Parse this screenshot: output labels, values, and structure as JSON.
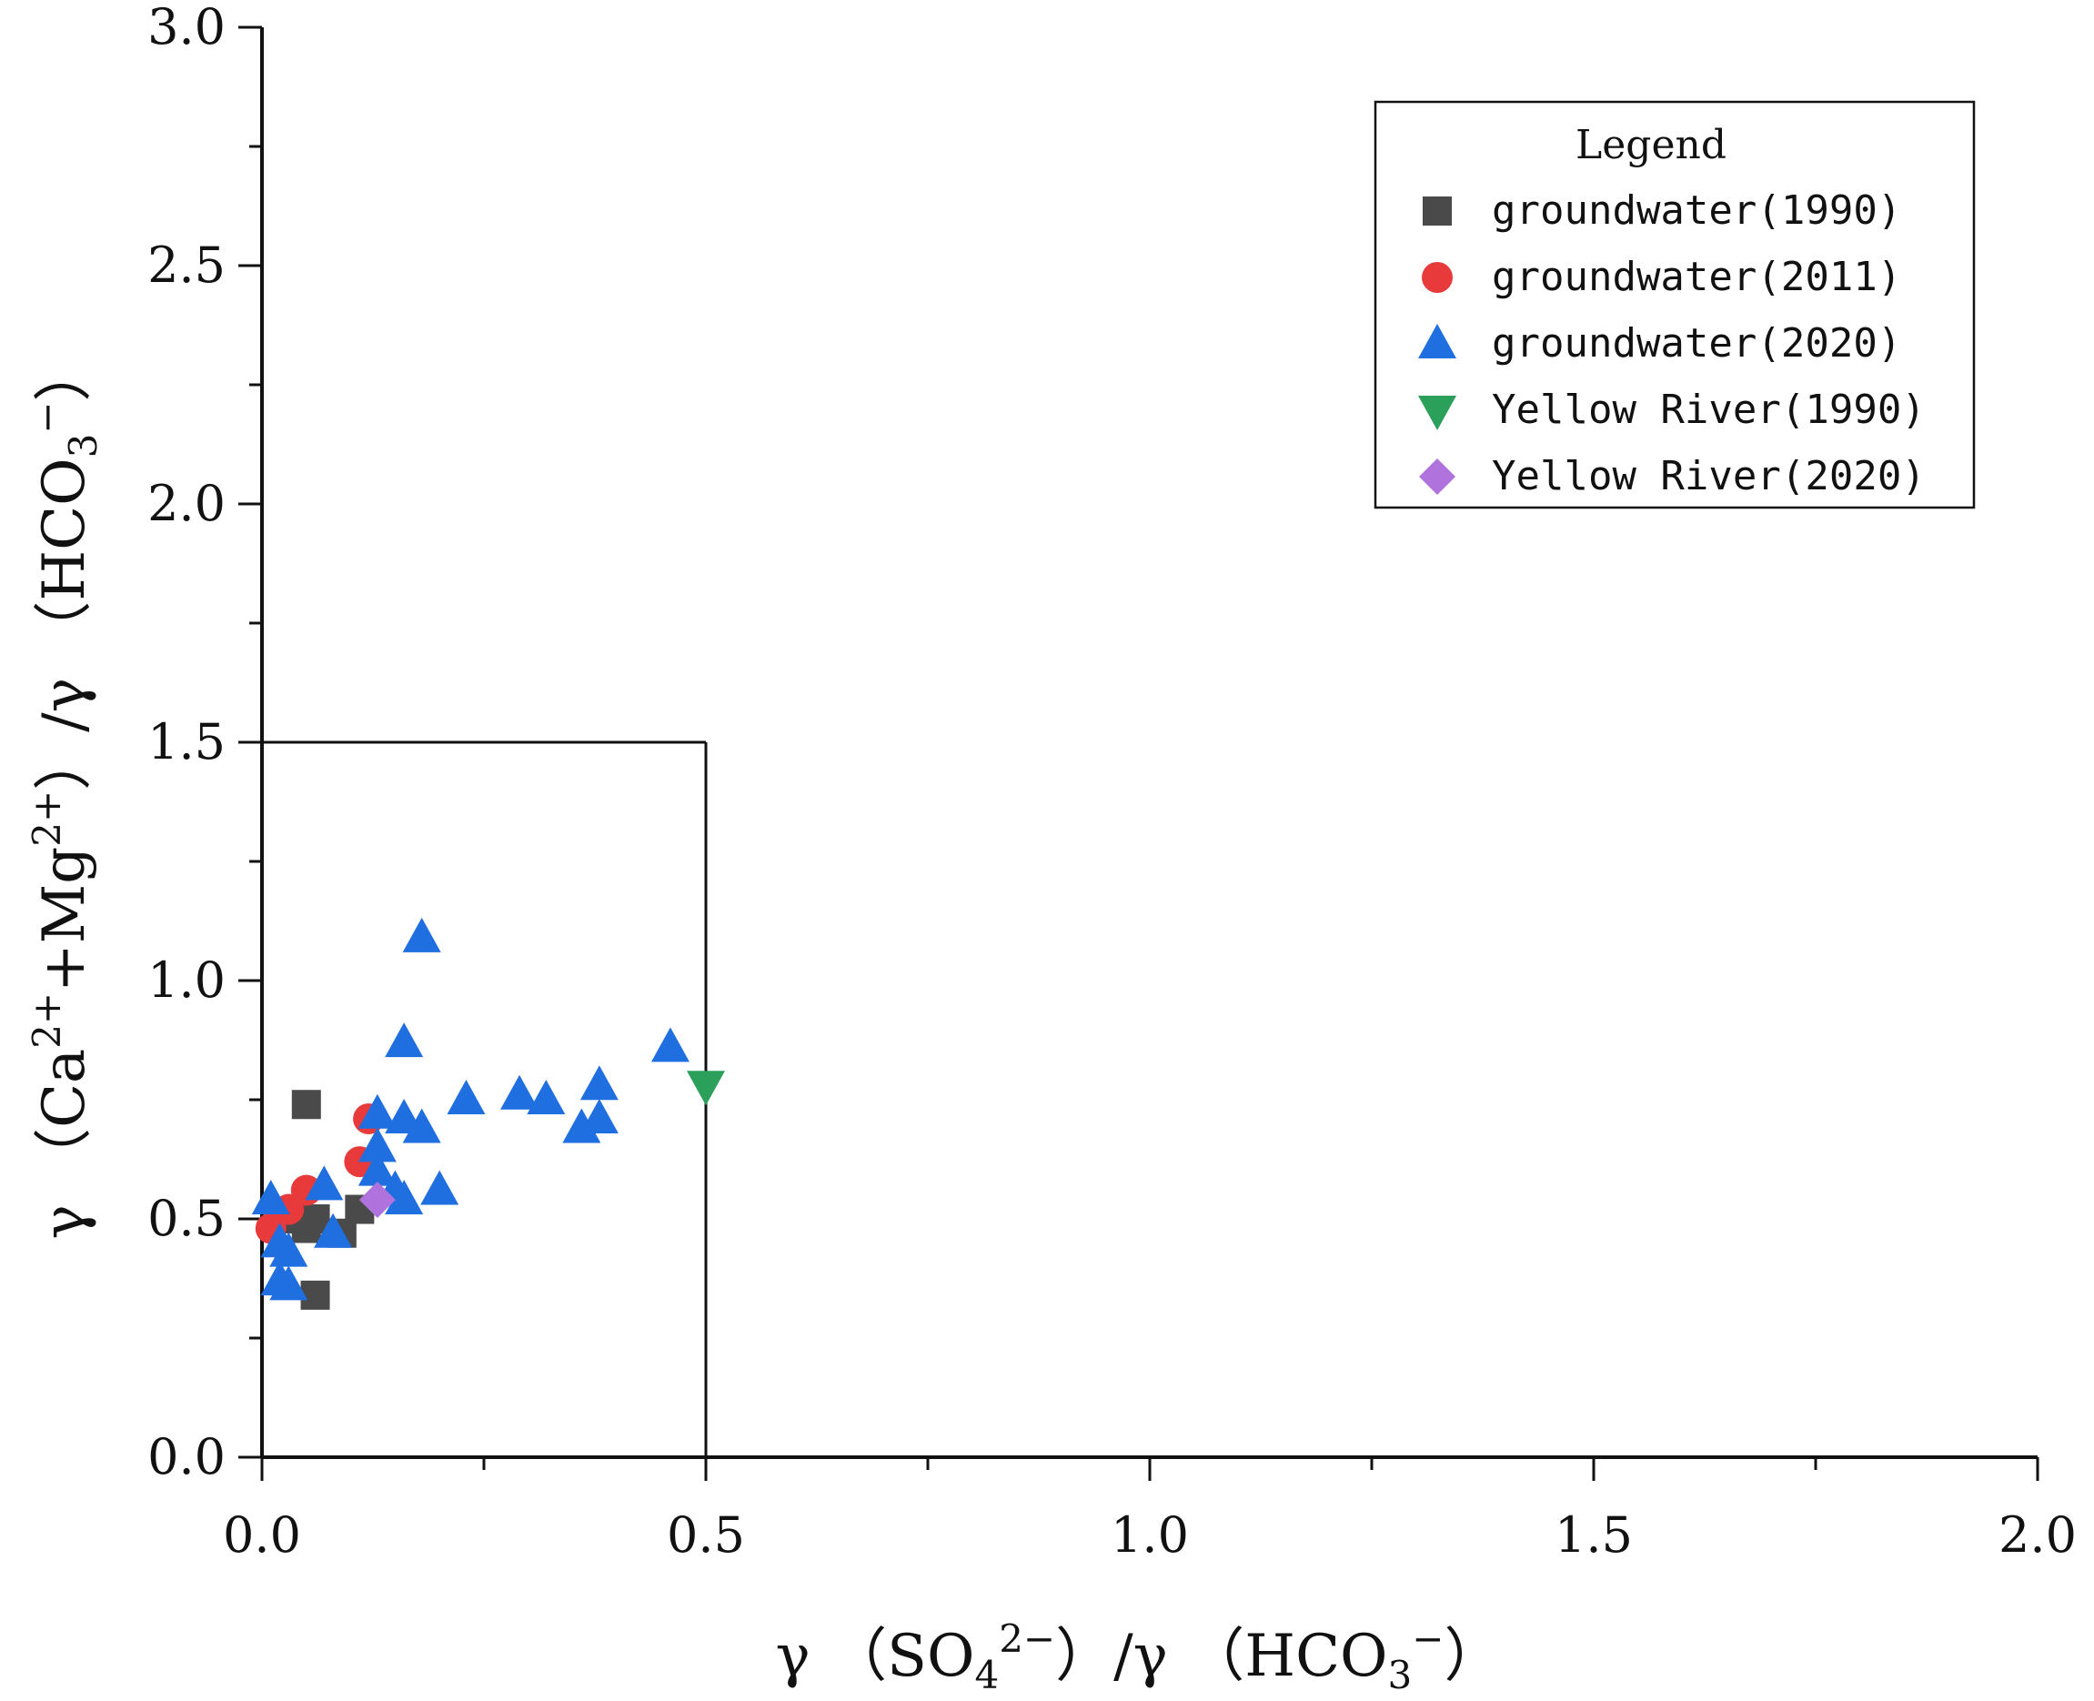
{
  "chart_data": {
    "type": "scatter",
    "title": "",
    "xlabel": {
      "prefix": "γ （SO",
      "sub1": "4",
      "sup1": "2−",
      "middle": "）/γ （HCO",
      "sub2": "3",
      "sup2": "−",
      "suffix": "）"
    },
    "ylabel": {
      "prefix": "γ （Ca",
      "sup1": "2+",
      "middle": "+Mg",
      "sup2": "2+",
      "middle2": "）/γ （HCO",
      "sub": "3",
      "sup3": "−",
      "suffix": "）"
    },
    "xlim": [
      0,
      2.0
    ],
    "ylim": [
      0,
      3.0
    ],
    "x_ticks": [
      0.0,
      0.5,
      1.0,
      1.5,
      2.0
    ],
    "x_tick_labels": [
      "0.0",
      "0.5",
      "1.0",
      "1.5",
      "2.0"
    ],
    "y_ticks": [
      0.0,
      0.5,
      1.0,
      1.5,
      2.0,
      2.5,
      3.0
    ],
    "y_tick_labels": [
      "0.0",
      "0.5",
      "1.0",
      "1.5",
      "2.0",
      "2.5",
      "3.0"
    ],
    "reference_box": {
      "x": [
        0,
        0.5
      ],
      "y": [
        0,
        1.5
      ]
    },
    "legend": {
      "title": "Legend",
      "position": "top-right"
    },
    "series": [
      {
        "name": "groundwater(1990)",
        "marker": "square",
        "color": "#4a4a4a",
        "points": [
          [
            0.05,
            0.74
          ],
          [
            0.06,
            0.34
          ],
          [
            0.05,
            0.48
          ],
          [
            0.06,
            0.5
          ],
          [
            0.09,
            0.47
          ],
          [
            0.11,
            0.52
          ],
          [
            0.04,
            0.5
          ]
        ]
      },
      {
        "name": "groundwater(2011)",
        "marker": "circle",
        "color": "#e83a3a",
        "points": [
          [
            0.05,
            0.56
          ],
          [
            0.01,
            0.48
          ],
          [
            0.12,
            0.71
          ],
          [
            0.11,
            0.62
          ],
          [
            0.03,
            0.52
          ]
        ]
      },
      {
        "name": "groundwater(2020)",
        "marker": "triangle-up",
        "color": "#1f6fe0",
        "points": [
          [
            0.18,
            1.09
          ],
          [
            0.16,
            0.87
          ],
          [
            0.46,
            0.86
          ],
          [
            0.38,
            0.78
          ],
          [
            0.29,
            0.76
          ],
          [
            0.23,
            0.75
          ],
          [
            0.32,
            0.75
          ],
          [
            0.13,
            0.72
          ],
          [
            0.16,
            0.71
          ],
          [
            0.18,
            0.69
          ],
          [
            0.36,
            0.69
          ],
          [
            0.38,
            0.71
          ],
          [
            0.13,
            0.65
          ],
          [
            0.13,
            0.6
          ],
          [
            0.07,
            0.57
          ],
          [
            0.15,
            0.56
          ],
          [
            0.2,
            0.56
          ],
          [
            0.16,
            0.54
          ],
          [
            0.01,
            0.54
          ],
          [
            0.08,
            0.47
          ],
          [
            0.02,
            0.45
          ],
          [
            0.03,
            0.43
          ],
          [
            0.02,
            0.37
          ],
          [
            0.03,
            0.36
          ]
        ]
      },
      {
        "name": "Yellow River(1990)",
        "marker": "triangle-down",
        "color": "#2aa05a",
        "points": [
          [
            0.5,
            0.78
          ]
        ]
      },
      {
        "name": "Yellow River(2020)",
        "marker": "diamond",
        "color": "#b072dd",
        "points": [
          [
            0.13,
            0.54
          ]
        ]
      }
    ]
  }
}
